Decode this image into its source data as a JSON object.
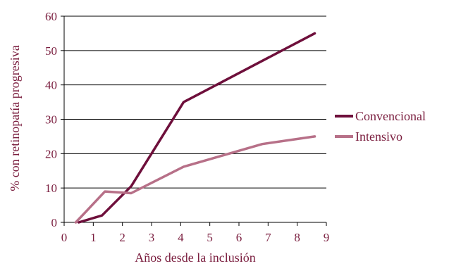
{
  "colors": {
    "text": "#7a1d3e",
    "gridline": "#000000",
    "axis": "#000000",
    "series": [
      "#6e0f3b",
      "#b77088"
    ]
  },
  "chart_data": {
    "type": "line",
    "title": "",
    "xlabel": "Años desde la inclusión",
    "ylabel": "% con retinopatía progresiva",
    "xlim": [
      0,
      9
    ],
    "ylim": [
      0,
      60
    ],
    "xticks": [
      0,
      1,
      2,
      3,
      4,
      5,
      6,
      7,
      8,
      9
    ],
    "yticks": [
      0,
      10,
      20,
      30,
      40,
      50,
      60
    ],
    "grid": "horizontal",
    "legend_position": "right",
    "series": [
      {
        "name": "Convencional",
        "points": [
          [
            0.5,
            0
          ],
          [
            1.3,
            2
          ],
          [
            2.3,
            10.5
          ],
          [
            4.1,
            35
          ],
          [
            8.6,
            55
          ]
        ]
      },
      {
        "name": "Intensivo",
        "points": [
          [
            0.4,
            0
          ],
          [
            1.4,
            9
          ],
          [
            2.3,
            8.5
          ],
          [
            4.1,
            16.2
          ],
          [
            6.8,
            22.8
          ],
          [
            8.6,
            25
          ]
        ]
      }
    ]
  }
}
